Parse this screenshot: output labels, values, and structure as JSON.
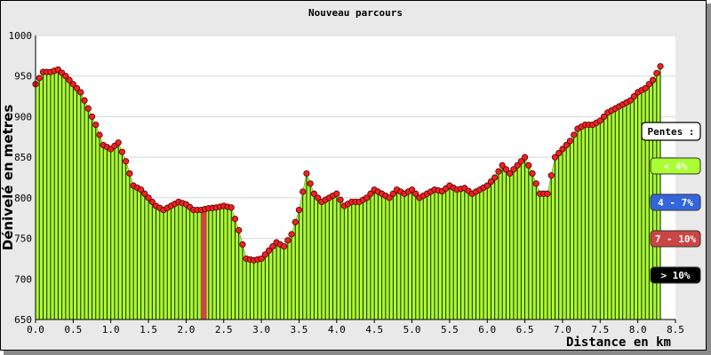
{
  "chart_data": {
    "type": "area",
    "title": "Nouveau parcours",
    "xlabel": "Distance en km",
    "ylabel": "Dénivelé en metres",
    "xlim": [
      0,
      8.5
    ],
    "ylim": [
      650,
      1000
    ],
    "x_ticks": [
      "0.0",
      "0.5",
      "1.0",
      "1.5",
      "2.0",
      "2.5",
      "3.0",
      "3.5",
      "4.0",
      "4.5",
      "5.0",
      "5.5",
      "6.0",
      "6.5",
      "7.0",
      "7.5",
      "8.0",
      "8.5"
    ],
    "y_ticks": [
      "650",
      "700",
      "750",
      "800",
      "850",
      "900",
      "950",
      "1000"
    ],
    "grid": "horizontal",
    "x": [
      0.0,
      0.1,
      0.2,
      0.3,
      0.4,
      0.5,
      0.6,
      0.7,
      0.8,
      0.9,
      1.0,
      1.1,
      1.2,
      1.3,
      1.4,
      1.5,
      1.6,
      1.7,
      1.8,
      1.9,
      2.0,
      2.1,
      2.2,
      2.3,
      2.4,
      2.5,
      2.6,
      2.7,
      2.8,
      2.9,
      3.0,
      3.1,
      3.2,
      3.3,
      3.4,
      3.5,
      3.6,
      3.7,
      3.8,
      3.9,
      4.0,
      4.1,
      4.2,
      4.3,
      4.4,
      4.5,
      4.6,
      4.7,
      4.8,
      4.9,
      5.0,
      5.1,
      5.2,
      5.3,
      5.4,
      5.5,
      5.6,
      5.7,
      5.8,
      5.9,
      6.0,
      6.1,
      6.2,
      6.3,
      6.4,
      6.5,
      6.6,
      6.7,
      6.8,
      6.9,
      7.0,
      7.1,
      7.2,
      7.3,
      7.4,
      7.5,
      7.6,
      7.7,
      7.8,
      7.9,
      8.0,
      8.1,
      8.2,
      8.3
    ],
    "values": [
      940,
      955,
      955,
      958,
      950,
      940,
      930,
      910,
      890,
      865,
      860,
      868,
      845,
      815,
      810,
      800,
      790,
      785,
      790,
      795,
      792,
      785,
      785,
      787,
      788,
      790,
      788,
      760,
      725,
      723,
      725,
      735,
      745,
      740,
      755,
      785,
      830,
      805,
      795,
      800,
      805,
      790,
      795,
      795,
      800,
      810,
      805,
      800,
      810,
      805,
      810,
      800,
      805,
      810,
      808,
      815,
      810,
      812,
      805,
      810,
      815,
      825,
      840,
      830,
      840,
      850,
      830,
      805,
      805,
      850,
      860,
      870,
      885,
      890,
      890,
      895,
      905,
      910,
      915,
      920,
      930,
      935,
      945,
      962
    ],
    "point_series_name": "Pentes",
    "legend": {
      "title": "Pentes :",
      "placement": "right",
      "entries": [
        {
          "label": "< 4%",
          "color": "#aaff33",
          "text_color": "#ffffff"
        },
        {
          "label": "4 - 7%",
          "color": "#3366dd",
          "text_color": "#ffffff"
        },
        {
          "label": "7 - 10%",
          "color": "#cc4444",
          "text_color": "#ffffff"
        },
        {
          "label": "> 10%",
          "color": "#000000",
          "text_color": "#ffffff"
        }
      ]
    },
    "colors": {
      "fill": "#aaff33",
      "marker": "#ee2222",
      "bar_line": "#000000"
    }
  }
}
